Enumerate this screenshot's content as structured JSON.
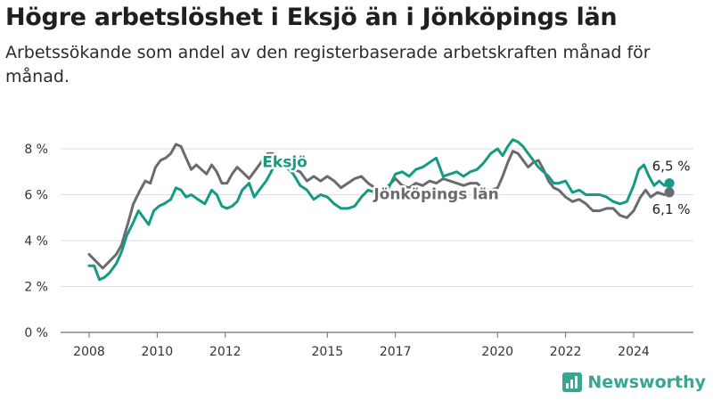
{
  "header": {
    "title": "Högre arbetslöshet i Eksjö än i Jönköpings län",
    "subtitle": "Arbetssökande som andel av den registerbaserade arbetskraften månad för månad."
  },
  "brand": {
    "name": "Newsworthy",
    "icon": "newsworthy-logo-icon",
    "color": "#3aa591"
  },
  "chart_data": {
    "type": "line",
    "xlabel": "",
    "ylabel": "",
    "ylim": [
      0,
      9
    ],
    "xlim": [
      2007.5,
      2025.5
    ],
    "y_ticks": [
      {
        "value": 0,
        "label": "0 %"
      },
      {
        "value": 2,
        "label": "2 %"
      },
      {
        "value": 4,
        "label": "4 %"
      },
      {
        "value": 6,
        "label": "6 %"
      },
      {
        "value": 8,
        "label": "8 %"
      }
    ],
    "x_ticks": [
      {
        "value": 2008,
        "label": "2008"
      },
      {
        "value": 2010,
        "label": "2010"
      },
      {
        "value": 2012,
        "label": "2012"
      },
      {
        "value": 2015,
        "label": "2015"
      },
      {
        "value": 2017,
        "label": "2017"
      },
      {
        "value": 2020,
        "label": "2020"
      },
      {
        "value": 2022,
        "label": "2022"
      },
      {
        "value": 2024,
        "label": "2024"
      }
    ],
    "grid": "horizontal",
    "series": [
      {
        "name": "Jönköpings län",
        "color": "#6b6b6e",
        "end_label": "6,1 %",
        "points": [
          [
            2008.0,
            3.4
          ],
          [
            2008.2,
            3.1
          ],
          [
            2008.4,
            2.8
          ],
          [
            2008.6,
            3.1
          ],
          [
            2008.8,
            3.4
          ],
          [
            2008.95,
            3.8
          ],
          [
            2009.15,
            4.8
          ],
          [
            2009.3,
            5.6
          ],
          [
            2009.5,
            6.2
          ],
          [
            2009.65,
            6.6
          ],
          [
            2009.8,
            6.5
          ],
          [
            2009.95,
            7.2
          ],
          [
            2010.1,
            7.5
          ],
          [
            2010.25,
            7.6
          ],
          [
            2010.4,
            7.8
          ],
          [
            2010.55,
            8.2
          ],
          [
            2010.7,
            8.1
          ],
          [
            2010.85,
            7.6
          ],
          [
            2011.0,
            7.1
          ],
          [
            2011.15,
            7.3
          ],
          [
            2011.3,
            7.1
          ],
          [
            2011.45,
            6.9
          ],
          [
            2011.6,
            7.3
          ],
          [
            2011.75,
            7.0
          ],
          [
            2011.9,
            6.5
          ],
          [
            2012.05,
            6.5
          ],
          [
            2012.2,
            6.9
          ],
          [
            2012.35,
            7.2
          ],
          [
            2012.5,
            7.0
          ],
          [
            2012.7,
            6.7
          ],
          [
            2012.9,
            7.1
          ],
          [
            2013.05,
            7.4
          ],
          [
            2013.25,
            7.8
          ],
          [
            2013.4,
            7.8
          ],
          [
            2013.6,
            7.4
          ],
          [
            2013.8,
            7.2
          ],
          [
            2014.0,
            7.1
          ],
          [
            2014.2,
            7.0
          ],
          [
            2014.4,
            6.6
          ],
          [
            2014.6,
            6.8
          ],
          [
            2014.8,
            6.6
          ],
          [
            2015.0,
            6.8
          ],
          [
            2015.2,
            6.6
          ],
          [
            2015.4,
            6.3
          ],
          [
            2015.6,
            6.5
          ],
          [
            2015.8,
            6.7
          ],
          [
            2016.0,
            6.8
          ],
          [
            2016.2,
            6.5
          ],
          [
            2016.4,
            6.3
          ],
          [
            2016.6,
            6.1
          ],
          [
            2016.8,
            6.4
          ],
          [
            2017.0,
            6.7
          ],
          [
            2017.2,
            6.4
          ],
          [
            2017.4,
            6.3
          ],
          [
            2017.6,
            6.5
          ],
          [
            2017.8,
            6.4
          ],
          [
            2018.0,
            6.6
          ],
          [
            2018.2,
            6.5
          ],
          [
            2018.4,
            6.7
          ],
          [
            2018.6,
            6.6
          ],
          [
            2018.8,
            6.5
          ],
          [
            2019.0,
            6.4
          ],
          [
            2019.2,
            6.5
          ],
          [
            2019.4,
            6.5
          ],
          [
            2019.6,
            6.2
          ],
          [
            2019.8,
            6.2
          ],
          [
            2020.0,
            6.3
          ],
          [
            2020.15,
            6.8
          ],
          [
            2020.3,
            7.4
          ],
          [
            2020.45,
            7.9
          ],
          [
            2020.6,
            7.8
          ],
          [
            2020.75,
            7.5
          ],
          [
            2020.9,
            7.2
          ],
          [
            2021.05,
            7.4
          ],
          [
            2021.2,
            7.5
          ],
          [
            2021.35,
            7.1
          ],
          [
            2021.5,
            6.6
          ],
          [
            2021.65,
            6.3
          ],
          [
            2021.8,
            6.2
          ],
          [
            2022.0,
            5.9
          ],
          [
            2022.2,
            5.7
          ],
          [
            2022.4,
            5.8
          ],
          [
            2022.6,
            5.6
          ],
          [
            2022.8,
            5.3
          ],
          [
            2023.0,
            5.3
          ],
          [
            2023.2,
            5.4
          ],
          [
            2023.4,
            5.4
          ],
          [
            2023.6,
            5.1
          ],
          [
            2023.8,
            5.0
          ],
          [
            2024.0,
            5.3
          ],
          [
            2024.2,
            5.9
          ],
          [
            2024.35,
            6.2
          ],
          [
            2024.5,
            5.9
          ],
          [
            2024.7,
            6.1
          ],
          [
            2024.9,
            6.0
          ],
          [
            2025.05,
            6.1
          ]
        ]
      },
      {
        "name": "Eksjö",
        "color": "#149a85",
        "end_label": "6,5 %",
        "points": [
          [
            2008.0,
            2.9
          ],
          [
            2008.15,
            2.9
          ],
          [
            2008.3,
            2.3
          ],
          [
            2008.45,
            2.4
          ],
          [
            2008.6,
            2.6
          ],
          [
            2008.8,
            3.0
          ],
          [
            2008.95,
            3.5
          ],
          [
            2009.1,
            4.2
          ],
          [
            2009.3,
            4.8
          ],
          [
            2009.45,
            5.3
          ],
          [
            2009.6,
            5.0
          ],
          [
            2009.75,
            4.7
          ],
          [
            2009.9,
            5.3
          ],
          [
            2010.05,
            5.5
          ],
          [
            2010.2,
            5.6
          ],
          [
            2010.4,
            5.8
          ],
          [
            2010.55,
            6.3
          ],
          [
            2010.7,
            6.2
          ],
          [
            2010.85,
            5.9
          ],
          [
            2011.0,
            6.0
          ],
          [
            2011.2,
            5.8
          ],
          [
            2011.4,
            5.6
          ],
          [
            2011.6,
            6.2
          ],
          [
            2011.75,
            6.0
          ],
          [
            2011.9,
            5.5
          ],
          [
            2012.05,
            5.4
          ],
          [
            2012.2,
            5.5
          ],
          [
            2012.35,
            5.7
          ],
          [
            2012.5,
            6.2
          ],
          [
            2012.7,
            6.5
          ],
          [
            2012.85,
            5.9
          ],
          [
            2013.0,
            6.2
          ],
          [
            2013.2,
            6.6
          ],
          [
            2013.35,
            7.0
          ],
          [
            2013.5,
            7.5
          ],
          [
            2013.65,
            7.6
          ],
          [
            2013.8,
            7.2
          ],
          [
            2014.0,
            6.9
          ],
          [
            2014.2,
            6.4
          ],
          [
            2014.4,
            6.2
          ],
          [
            2014.6,
            5.8
          ],
          [
            2014.8,
            6.0
          ],
          [
            2015.0,
            5.9
          ],
          [
            2015.2,
            5.6
          ],
          [
            2015.4,
            5.4
          ],
          [
            2015.6,
            5.4
          ],
          [
            2015.8,
            5.5
          ],
          [
            2016.0,
            5.9
          ],
          [
            2016.2,
            6.2
          ],
          [
            2016.4,
            6.1
          ],
          [
            2016.6,
            6.0
          ],
          [
            2016.8,
            6.3
          ],
          [
            2017.0,
            6.9
          ],
          [
            2017.2,
            7.0
          ],
          [
            2017.4,
            6.8
          ],
          [
            2017.6,
            7.1
          ],
          [
            2017.8,
            7.2
          ],
          [
            2018.0,
            7.4
          ],
          [
            2018.2,
            7.6
          ],
          [
            2018.4,
            6.8
          ],
          [
            2018.6,
            6.9
          ],
          [
            2018.8,
            7.0
          ],
          [
            2019.0,
            6.8
          ],
          [
            2019.2,
            7.0
          ],
          [
            2019.4,
            7.1
          ],
          [
            2019.6,
            7.4
          ],
          [
            2019.8,
            7.8
          ],
          [
            2020.0,
            8.0
          ],
          [
            2020.15,
            7.7
          ],
          [
            2020.3,
            8.1
          ],
          [
            2020.45,
            8.4
          ],
          [
            2020.6,
            8.3
          ],
          [
            2020.75,
            8.1
          ],
          [
            2020.9,
            7.8
          ],
          [
            2021.05,
            7.5
          ],
          [
            2021.2,
            7.2
          ],
          [
            2021.35,
            7.0
          ],
          [
            2021.5,
            6.8
          ],
          [
            2021.65,
            6.5
          ],
          [
            2021.8,
            6.5
          ],
          [
            2022.0,
            6.6
          ],
          [
            2022.2,
            6.1
          ],
          [
            2022.4,
            6.2
          ],
          [
            2022.6,
            6.0
          ],
          [
            2022.8,
            6.0
          ],
          [
            2023.0,
            6.0
          ],
          [
            2023.2,
            5.9
          ],
          [
            2023.4,
            5.7
          ],
          [
            2023.6,
            5.6
          ],
          [
            2023.8,
            5.7
          ],
          [
            2024.0,
            6.4
          ],
          [
            2024.15,
            7.1
          ],
          [
            2024.3,
            7.3
          ],
          [
            2024.45,
            6.8
          ],
          [
            2024.6,
            6.4
          ],
          [
            2024.75,
            6.6
          ],
          [
            2024.9,
            6.4
          ],
          [
            2025.05,
            6.5
          ]
        ]
      }
    ],
    "annotations": [
      {
        "series": "Eksjö",
        "label": "Eksjö",
        "x": 2013.75,
        "y": 7.2
      },
      {
        "series": "Jönköpings län",
        "label": "Jönköpings län",
        "x": 2018.2,
        "y": 5.8
      }
    ]
  }
}
